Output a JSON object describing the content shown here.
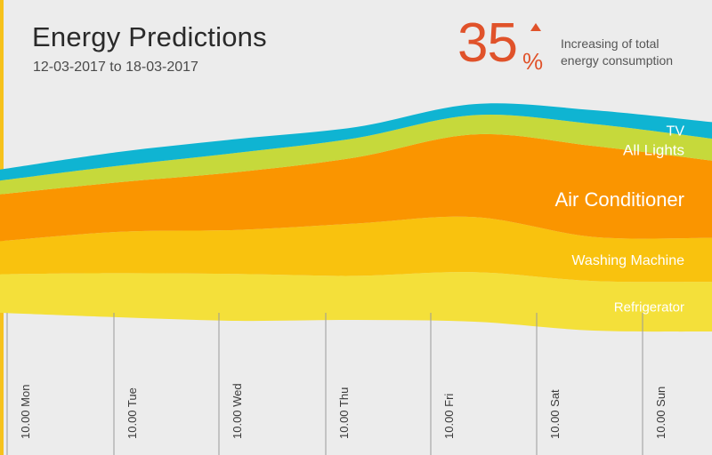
{
  "header": {
    "title": "Energy Predictions",
    "date_range": "12-03-2017 to 18-03-2017"
  },
  "stat": {
    "value": "35",
    "unit": "%",
    "description_line1": "Increasing of total",
    "description_line2": "energy consumption",
    "color": "#e0522a"
  },
  "chart_data": {
    "type": "area",
    "stacked": true,
    "streamgraph": true,
    "title": "Energy Predictions",
    "categories": [
      "10.00 Mon",
      "10.00 Tue",
      "10.00 Wed",
      "10.00 Thu",
      "10.00 Fri",
      "10.00 Sat",
      "10.00 Sun"
    ],
    "series": [
      {
        "name": "Refrigerator",
        "color": "#f4e03a",
        "values": [
          14,
          16,
          17,
          16,
          18,
          18,
          18
        ]
      },
      {
        "name": "Washing Machine",
        "color": "#f9c20e",
        "values": [
          12,
          15,
          16,
          19,
          20,
          16,
          16
        ]
      },
      {
        "name": "Air Conditioner",
        "color": "#fa9500",
        "values": [
          17,
          18,
          21,
          24,
          30,
          33,
          28
        ]
      },
      {
        "name": "All Lights",
        "color": "#c6d93b",
        "values": [
          5,
          6,
          7,
          7,
          7,
          8,
          8
        ]
      },
      {
        "name": "TV",
        "color": "#0fb4d2",
        "values": [
          4,
          5,
          5,
          4,
          4,
          5,
          6
        ]
      }
    ],
    "xaxis_orientation": "vertical labels",
    "legend": "inline labels at right edge"
  }
}
